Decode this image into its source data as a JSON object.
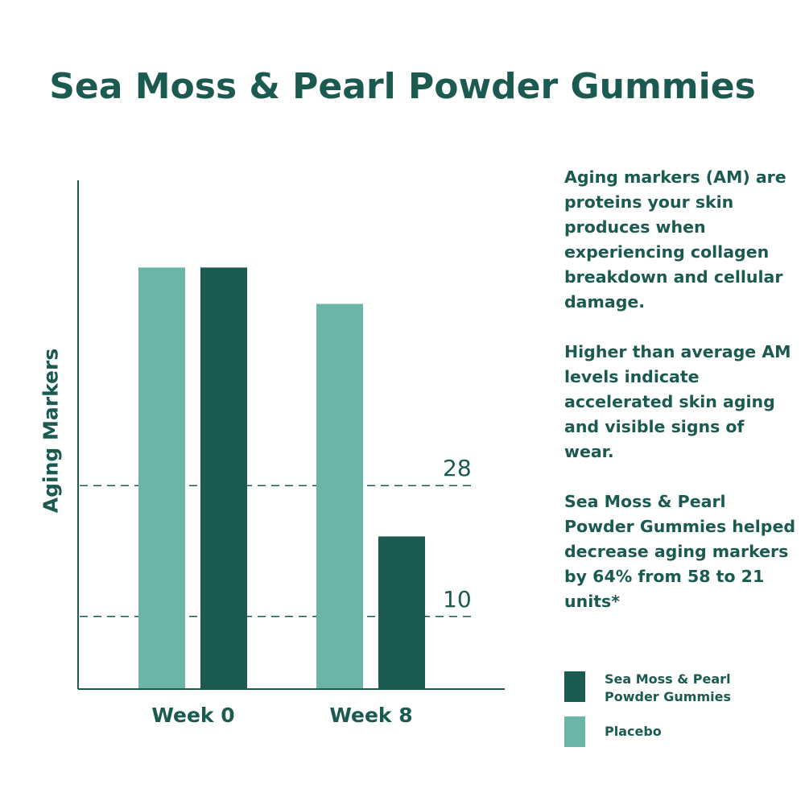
{
  "title": "Sea Moss & Pearl Powder Gummies",
  "colors": {
    "text": "#1a5a50",
    "gummies": "#1a5a50",
    "placebo": "#6bb5a8",
    "axis": "#1a5a50"
  },
  "chart_data": {
    "type": "bar",
    "title": "Sea Moss & Pearl Powder Gummies",
    "xlabel": "",
    "ylabel": "Aging Markers",
    "categories": [
      "Week 0",
      "Week 8"
    ],
    "series": [
      {
        "name": "Placebo",
        "color": "#6bb5a8",
        "values": [
          58,
          53
        ]
      },
      {
        "name": "Sea Moss & Pearl Powder Gummies",
        "color": "#1a5a50",
        "values": [
          58,
          21
        ]
      }
    ],
    "reference_lines": [
      {
        "value": 28,
        "label": "28",
        "style": "dashed"
      },
      {
        "value": 10,
        "label": "10",
        "style": "dashed"
      }
    ],
    "ylim": [
      0,
      70
    ],
    "grid": false,
    "legend_position": "right"
  },
  "description": [
    "Aging markers (AM) are proteins your skin produces when experiencing collagen breakdown and cellular damage.",
    "Higher than average AM levels indicate accelerated skin aging and visible signs of wear.",
    "Sea Moss & Pearl Powder Gummies helped decrease aging markers by 64% from 58 to 21 units*"
  ],
  "legend": [
    {
      "label": "Sea Moss & Pearl Powder Gummies",
      "color": "#1a5a50"
    },
    {
      "label": "Placebo",
      "color": "#6bb5a8"
    }
  ]
}
